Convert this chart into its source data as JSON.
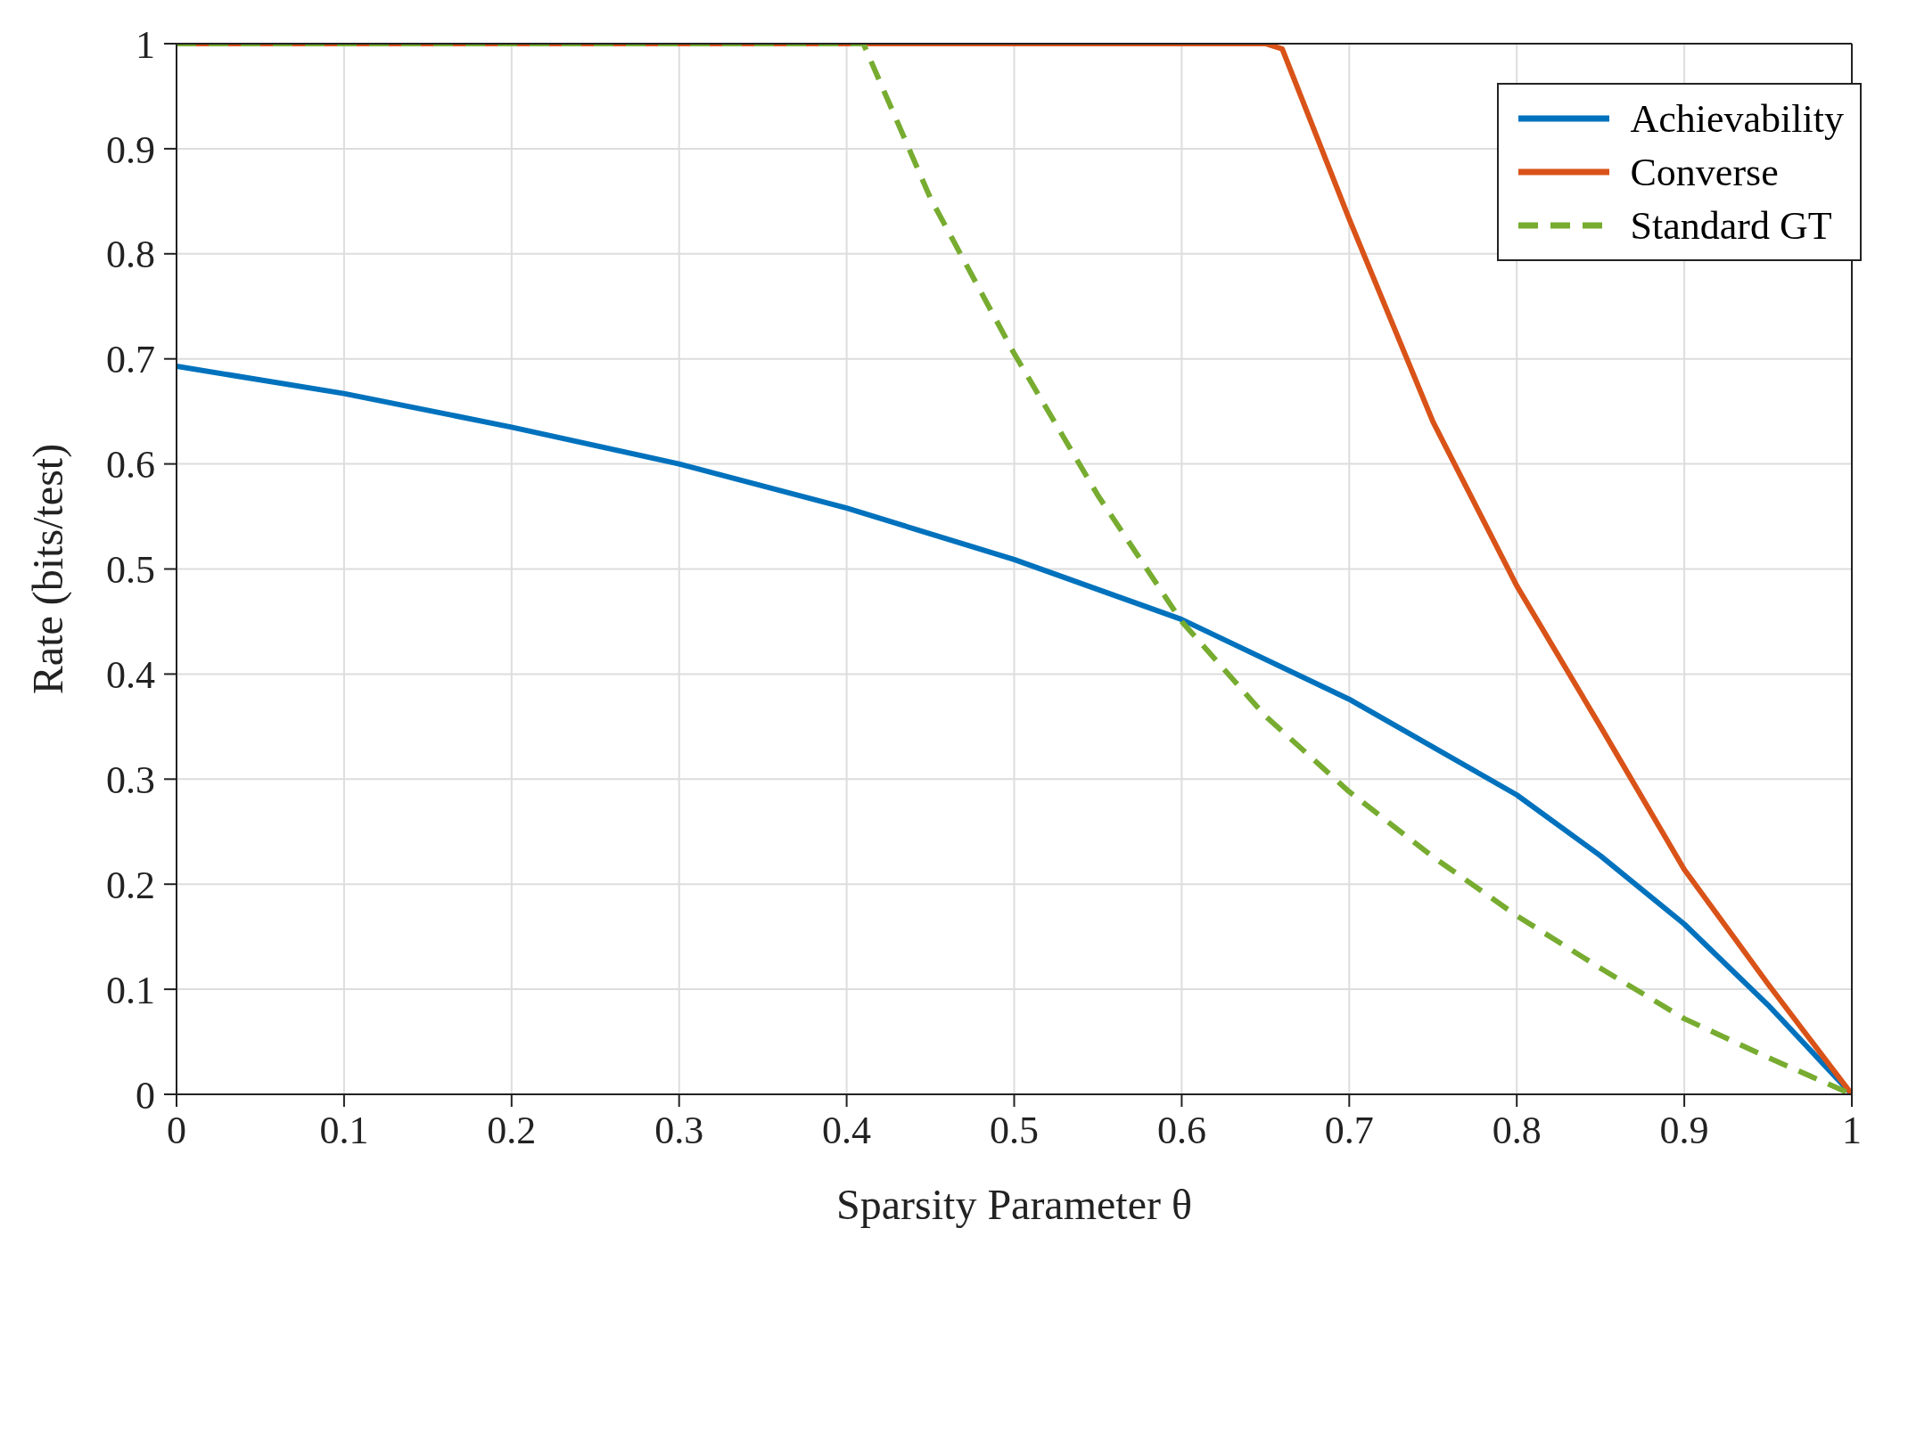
{
  "chart_data": {
    "type": "line",
    "xlabel": "Sparsity Parameter θ",
    "ylabel": "Rate (bits/test)",
    "xlim": [
      0,
      1
    ],
    "ylim": [
      0,
      1
    ],
    "xticks": [
      0,
      0.1,
      0.2,
      0.3,
      0.4,
      0.5,
      0.6,
      0.7,
      0.8,
      0.9,
      1
    ],
    "yticks": [
      0,
      0.1,
      0.2,
      0.3,
      0.4,
      0.5,
      0.6,
      0.7,
      0.8,
      0.9,
      1
    ],
    "grid": true,
    "legend": "top right",
    "marker": "none",
    "series": [
      {
        "name": "Achievability",
        "color": "#0072bd",
        "line_style": "solid",
        "x": [
          0,
          0.1,
          0.2,
          0.3,
          0.4,
          0.5,
          0.6,
          0.7,
          0.8,
          0.85,
          0.9,
          0.95,
          1
        ],
        "values": [
          0.693,
          0.667,
          0.635,
          0.6,
          0.558,
          0.509,
          0.452,
          0.376,
          0.285,
          0.227,
          0.162,
          0.085,
          0
        ]
      },
      {
        "name": "Converse",
        "color": "#d95319",
        "line_style": "solid",
        "x": [
          0,
          0.65,
          0.66,
          0.7,
          0.75,
          0.8,
          0.85,
          0.9,
          0.95,
          1
        ],
        "values": [
          1,
          1,
          0.995,
          0.833,
          0.64,
          0.484,
          0.35,
          0.214,
          0.105,
          0
        ]
      },
      {
        "name": "Standard GT",
        "color": "#77ac30",
        "line_style": "dashed",
        "x": [
          0,
          0.41,
          0.45,
          0.5,
          0.55,
          0.6,
          0.65,
          0.7,
          0.75,
          0.8,
          0.85,
          0.9,
          0.95,
          1
        ],
        "values": [
          1,
          1,
          0.853,
          0.705,
          0.57,
          0.45,
          0.36,
          0.288,
          0.226,
          0.17,
          0.12,
          0.072,
          0.035,
          0
        ]
      }
    ]
  }
}
